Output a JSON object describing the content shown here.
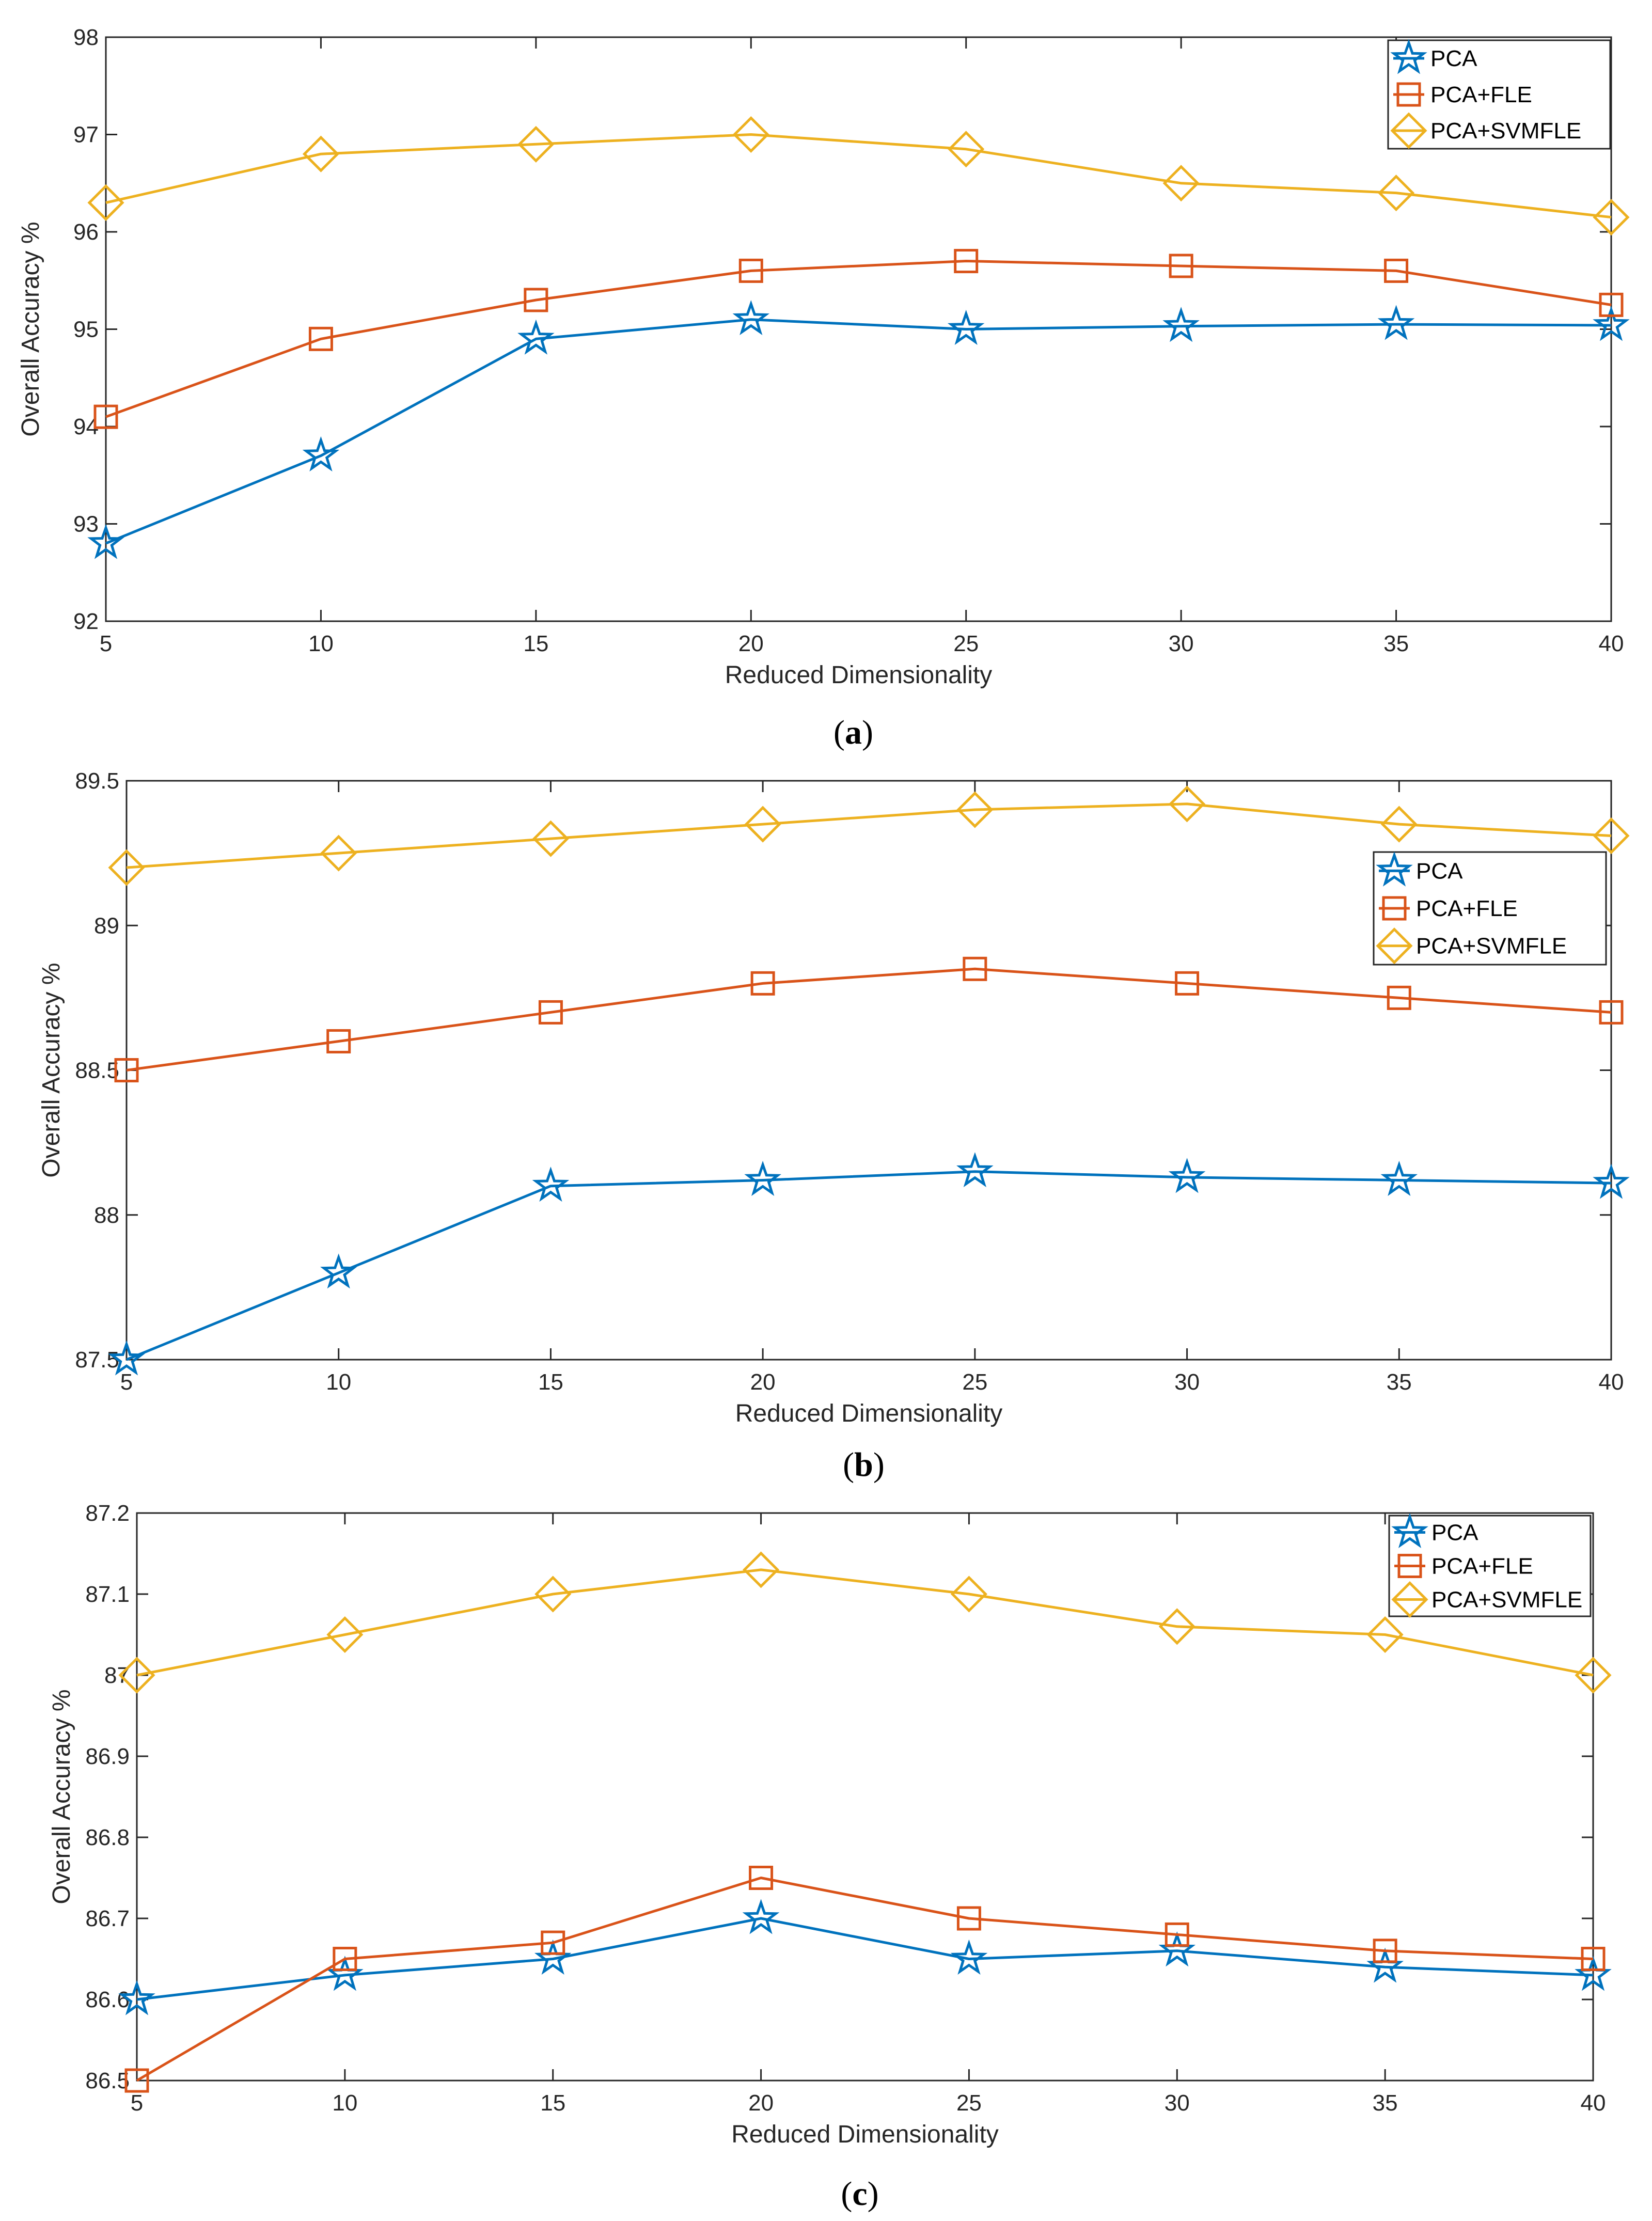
{
  "chart_data": [
    {
      "type": "line",
      "panel_label": "a",
      "xlabel": "Reduced Dimensionality",
      "ylabel": "Overall Accuracy %",
      "x": [
        5,
        10,
        15,
        20,
        25,
        30,
        35,
        40
      ],
      "xlim": [
        5,
        40
      ],
      "ylim": [
        92,
        98
      ],
      "xticks": [
        5,
        10,
        15,
        20,
        25,
        30,
        35,
        40
      ],
      "xtick_labels": [
        "5",
        "10",
        "15",
        "20",
        "25",
        "30",
        "35",
        "40"
      ],
      "yticks": [
        92,
        93,
        94,
        95,
        96,
        97,
        98
      ],
      "ytick_labels": [
        "92",
        "93",
        "94",
        "95",
        "96",
        "97",
        "98"
      ],
      "legend_position": "top-right",
      "series": [
        {
          "name": "PCA",
          "color": "#0072BD",
          "marker": "star",
          "values": [
            92.8,
            93.7,
            94.9,
            95.1,
            95.0,
            95.03,
            95.05,
            95.04
          ]
        },
        {
          "name": "PCA+FLE",
          "color": "#D95319",
          "marker": "square",
          "values": [
            94.1,
            94.9,
            95.3,
            95.6,
            95.7,
            95.65,
            95.6,
            95.25
          ]
        },
        {
          "name": "PCA+SVMFLE",
          "color": "#EDB120",
          "marker": "diamond",
          "values": [
            96.3,
            96.8,
            96.9,
            97.0,
            96.85,
            96.5,
            96.4,
            96.15
          ]
        }
      ]
    },
    {
      "type": "line",
      "panel_label": "b",
      "xlabel": "Reduced Dimensionality",
      "ylabel": "Overall Accuracy %",
      "x": [
        5,
        10,
        15,
        20,
        25,
        30,
        35,
        40
      ],
      "xlim": [
        5,
        40
      ],
      "ylim": [
        87.5,
        89.5
      ],
      "xticks": [
        5,
        10,
        15,
        20,
        25,
        30,
        35,
        40
      ],
      "xtick_labels": [
        "5",
        "10",
        "15",
        "20",
        "25",
        "30",
        "35",
        "40"
      ],
      "yticks": [
        87.5,
        88,
        88.5,
        89,
        89.5
      ],
      "ytick_labels": [
        "87.5",
        "88",
        "88.5",
        "89",
        "89.5"
      ],
      "legend_position": "right",
      "series": [
        {
          "name": "PCA",
          "color": "#0072BD",
          "marker": "star",
          "values": [
            87.5,
            87.8,
            88.1,
            88.12,
            88.15,
            88.13,
            88.12,
            88.11
          ]
        },
        {
          "name": "PCA+FLE",
          "color": "#D95319",
          "marker": "square",
          "values": [
            88.5,
            88.6,
            88.7,
            88.8,
            88.85,
            88.8,
            88.75,
            88.7
          ]
        },
        {
          "name": "PCA+SVMFLE",
          "color": "#EDB120",
          "marker": "diamond",
          "values": [
            89.2,
            89.25,
            89.3,
            89.35,
            89.4,
            89.42,
            89.35,
            89.31
          ]
        }
      ]
    },
    {
      "type": "line",
      "panel_label": "c",
      "xlabel": "Reduced Dimensionality",
      "ylabel": "Overall Accuracy %",
      "x": [
        5,
        10,
        15,
        20,
        25,
        30,
        35,
        40
      ],
      "xlim": [
        5,
        40
      ],
      "ylim": [
        86.5,
        87.2
      ],
      "xticks": [
        5,
        10,
        15,
        20,
        25,
        30,
        35,
        40
      ],
      "xtick_labels": [
        "5",
        "10",
        "15",
        "20",
        "25",
        "30",
        "35",
        "40"
      ],
      "yticks": [
        86.5,
        86.6,
        86.7,
        86.8,
        86.9,
        87,
        87.1,
        87.2
      ],
      "ytick_labels": [
        "86.5",
        "86.6",
        "86.7",
        "86.8",
        "86.9",
        "87",
        "87.1",
        "87.2"
      ],
      "legend_position": "top-right",
      "series": [
        {
          "name": "PCA",
          "color": "#0072BD",
          "marker": "star",
          "values": [
            86.6,
            86.63,
            86.65,
            86.7,
            86.65,
            86.66,
            86.64,
            86.63
          ]
        },
        {
          "name": "PCA+FLE",
          "color": "#D95319",
          "marker": "square",
          "values": [
            86.5,
            86.65,
            86.67,
            86.75,
            86.7,
            86.68,
            86.66,
            86.65
          ]
        },
        {
          "name": "PCA+SVMFLE",
          "color": "#EDB120",
          "marker": "diamond",
          "values": [
            87.0,
            87.05,
            87.1,
            87.13,
            87.1,
            87.06,
            87.05,
            87.0
          ]
        }
      ]
    }
  ]
}
